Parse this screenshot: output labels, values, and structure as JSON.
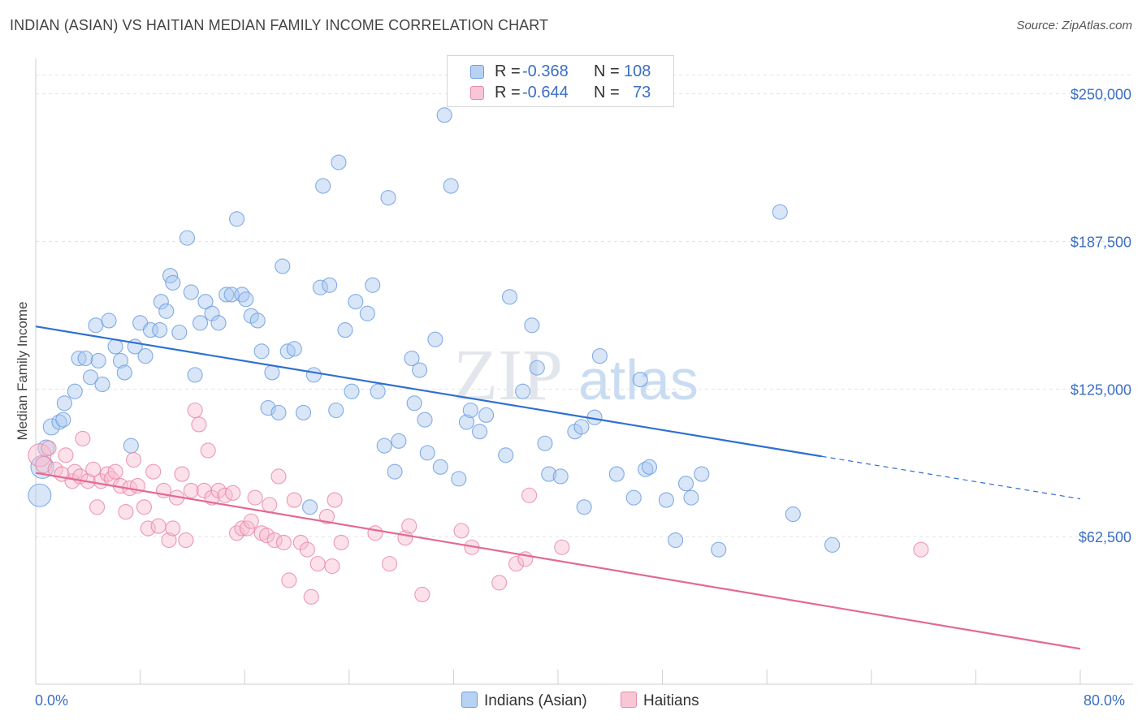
{
  "title": "INDIAN (ASIAN) VS HAITIAN MEDIAN FAMILY INCOME CORRELATION CHART",
  "source": "Source: ZipAtlas.com",
  "watermark": "ZIPatlas",
  "legend": {
    "rows": [
      {
        "r_label": "R =",
        "r_value": "-0.368",
        "n_label": "N =",
        "n_value": "108",
        "color": "#a8c8f0",
        "border": "#6f9fe0"
      },
      {
        "r_label": "R =",
        "r_value": "-0.644",
        "n_label": "N =",
        "n_value": "73",
        "color": "#f8bcd0",
        "border": "#e888a8"
      }
    ]
  },
  "chart_data": {
    "type": "scatter",
    "title": "INDIAN (ASIAN) VS HAITIAN MEDIAN FAMILY INCOME CORRELATION CHART",
    "xlabel": "",
    "ylabel": "Median Family Income",
    "xlim": [
      0,
      80
    ],
    "ylim": [
      0,
      265000
    ],
    "x_tick_labels": [
      "0.0%",
      "80.0%"
    ],
    "y_ticks": [
      62500,
      125000,
      187500,
      250000
    ],
    "y_tick_labels": [
      "$62,500",
      "$125,000",
      "$187,500",
      "$250,000"
    ],
    "grid": "horizontal dashed",
    "legend_placement": "bottom-center",
    "series": [
      {
        "name": "Indians (Asian)",
        "color": "#6f9fe0",
        "fill": "#a8c8f0",
        "trend": {
          "x": [
            0,
            60.2
          ],
          "y": [
            151500,
            96500
          ],
          "dash_to": [
            80,
            78500
          ]
        },
        "points": [
          [
            0.3,
            80000,
            14
          ],
          [
            0.5,
            92000,
            14
          ],
          [
            0.8,
            100000,
            10
          ],
          [
            1.2,
            109000,
            10
          ],
          [
            1.8,
            111000,
            9
          ],
          [
            2.1,
            112000,
            9
          ],
          [
            2.2,
            119000,
            9
          ],
          [
            3.0,
            124000,
            9
          ],
          [
            3.3,
            138000,
            9
          ],
          [
            3.8,
            138000,
            9
          ],
          [
            4.2,
            130000,
            9
          ],
          [
            4.6,
            152000,
            9
          ],
          [
            4.8,
            137000,
            9
          ],
          [
            5.1,
            127000,
            9
          ],
          [
            5.6,
            154000,
            9
          ],
          [
            6.1,
            143000,
            9
          ],
          [
            6.5,
            137000,
            9
          ],
          [
            6.8,
            132000,
            9
          ],
          [
            7.3,
            101000,
            9
          ],
          [
            7.6,
            143000,
            9
          ],
          [
            8.0,
            153000,
            9
          ],
          [
            8.4,
            139000,
            9
          ],
          [
            8.8,
            150000,
            9
          ],
          [
            9.5,
            150000,
            9
          ],
          [
            9.6,
            162000,
            9
          ],
          [
            10.0,
            158000,
            9
          ],
          [
            10.3,
            173000,
            9
          ],
          [
            10.5,
            170000,
            9
          ],
          [
            11.0,
            149000,
            9
          ],
          [
            11.6,
            189000,
            9
          ],
          [
            11.9,
            166000,
            9
          ],
          [
            12.2,
            131000,
            9
          ],
          [
            12.6,
            153000,
            9
          ],
          [
            13.0,
            162000,
            9
          ],
          [
            13.5,
            157000,
            9
          ],
          [
            14.0,
            153000,
            9
          ],
          [
            14.6,
            165000,
            9
          ],
          [
            15.0,
            165000,
            9
          ],
          [
            15.4,
            197000,
            9
          ],
          [
            15.8,
            165000,
            9
          ],
          [
            16.1,
            163000,
            9
          ],
          [
            16.5,
            156000,
            9
          ],
          [
            17.0,
            154000,
            9
          ],
          [
            17.3,
            141000,
            9
          ],
          [
            17.8,
            117000,
            9
          ],
          [
            18.1,
            132000,
            9
          ],
          [
            18.6,
            115000,
            9
          ],
          [
            18.9,
            177000,
            9
          ],
          [
            19.3,
            141000,
            9
          ],
          [
            19.8,
            142000,
            9
          ],
          [
            20.5,
            115000,
            9
          ],
          [
            21.0,
            75000,
            9
          ],
          [
            21.3,
            131000,
            9
          ],
          [
            21.8,
            168000,
            9
          ],
          [
            22.0,
            211000,
            9
          ],
          [
            22.5,
            169000,
            9
          ],
          [
            23.0,
            116000,
            9
          ],
          [
            23.2,
            221000,
            9
          ],
          [
            23.7,
            150000,
            9
          ],
          [
            24.2,
            124000,
            9
          ],
          [
            24.5,
            162000,
            9
          ],
          [
            25.4,
            157000,
            9
          ],
          [
            25.8,
            169000,
            9
          ],
          [
            26.2,
            124000,
            9
          ],
          [
            26.7,
            101000,
            9
          ],
          [
            27.0,
            206000,
            9
          ],
          [
            27.5,
            90000,
            9
          ],
          [
            27.8,
            103000,
            9
          ],
          [
            28.8,
            138000,
            9
          ],
          [
            29.0,
            119000,
            9
          ],
          [
            29.4,
            133000,
            9
          ],
          [
            29.8,
            112000,
            9
          ],
          [
            30.0,
            98000,
            9
          ],
          [
            30.6,
            146000,
            9
          ],
          [
            31.0,
            92000,
            9
          ],
          [
            31.3,
            241000,
            9
          ],
          [
            31.8,
            211000,
            9
          ],
          [
            32.4,
            87000,
            9
          ],
          [
            33.0,
            111000,
            9
          ],
          [
            33.3,
            116000,
            9
          ],
          [
            34.0,
            107000,
            9
          ],
          [
            34.5,
            114000,
            9
          ],
          [
            36.0,
            97000,
            9
          ],
          [
            36.3,
            164000,
            9
          ],
          [
            37.3,
            124000,
            9
          ],
          [
            38.0,
            152000,
            9
          ],
          [
            38.4,
            134000,
            9
          ],
          [
            39.0,
            102000,
            9
          ],
          [
            39.3,
            89000,
            9
          ],
          [
            40.2,
            88000,
            9
          ],
          [
            41.3,
            107000,
            9
          ],
          [
            41.8,
            109000,
            9
          ],
          [
            42.0,
            75000,
            9
          ],
          [
            42.8,
            113000,
            9
          ],
          [
            43.2,
            139000,
            9
          ],
          [
            44.5,
            89000,
            9
          ],
          [
            45.8,
            79000,
            9
          ],
          [
            46.3,
            129000,
            9
          ],
          [
            46.7,
            91000,
            9
          ],
          [
            47.0,
            92000,
            9
          ],
          [
            48.3,
            78000,
            9
          ],
          [
            49.0,
            61000,
            9
          ],
          [
            49.8,
            85000,
            9
          ],
          [
            50.2,
            79000,
            9
          ],
          [
            51.0,
            89000,
            9
          ],
          [
            52.3,
            57000,
            9
          ],
          [
            57.0,
            200000,
            9
          ],
          [
            58.0,
            72000,
            9
          ],
          [
            61.0,
            59000,
            9
          ]
        ]
      },
      {
        "name": "Haitians",
        "color": "#e888a8",
        "fill": "#f8bcd0",
        "trend": {
          "x": [
            0,
            80
          ],
          "y": [
            89500,
            15000
          ]
        },
        "points": [
          [
            0.3,
            97000,
            14
          ],
          [
            0.6,
            93000,
            10
          ],
          [
            1.0,
            100000,
            9
          ],
          [
            1.5,
            91000,
            9
          ],
          [
            2.0,
            89000,
            9
          ],
          [
            2.3,
            97000,
            9
          ],
          [
            2.8,
            86000,
            9
          ],
          [
            3.0,
            90000,
            9
          ],
          [
            3.4,
            88000,
            9
          ],
          [
            3.6,
            104000,
            9
          ],
          [
            4.0,
            86000,
            9
          ],
          [
            4.4,
            91000,
            9
          ],
          [
            4.7,
            75000,
            9
          ],
          [
            5.0,
            86000,
            9
          ],
          [
            5.5,
            89000,
            9
          ],
          [
            5.8,
            87000,
            9
          ],
          [
            6.1,
            90000,
            9
          ],
          [
            6.5,
            84000,
            9
          ],
          [
            6.9,
            73000,
            9
          ],
          [
            7.2,
            83000,
            9
          ],
          [
            7.5,
            95000,
            9
          ],
          [
            7.8,
            84000,
            9
          ],
          [
            8.3,
            75000,
            9
          ],
          [
            8.6,
            66000,
            9
          ],
          [
            9.0,
            90000,
            9
          ],
          [
            9.4,
            67000,
            9
          ],
          [
            9.8,
            82000,
            9
          ],
          [
            10.2,
            61000,
            9
          ],
          [
            10.5,
            66000,
            9
          ],
          [
            10.8,
            79000,
            9
          ],
          [
            11.2,
            89000,
            9
          ],
          [
            11.5,
            61000,
            9
          ],
          [
            11.9,
            82000,
            9
          ],
          [
            12.2,
            116000,
            9
          ],
          [
            12.5,
            110000,
            9
          ],
          [
            12.9,
            82000,
            9
          ],
          [
            13.2,
            99000,
            9
          ],
          [
            13.5,
            79000,
            9
          ],
          [
            14.0,
            82000,
            9
          ],
          [
            14.5,
            80000,
            9
          ],
          [
            15.1,
            81000,
            9
          ],
          [
            15.4,
            64000,
            9
          ],
          [
            15.8,
            66000,
            9
          ],
          [
            16.2,
            66000,
            9
          ],
          [
            16.5,
            69000,
            9
          ],
          [
            16.8,
            79000,
            9
          ],
          [
            17.3,
            64000,
            9
          ],
          [
            17.7,
            63000,
            9
          ],
          [
            17.9,
            76000,
            9
          ],
          [
            18.3,
            61000,
            9
          ],
          [
            18.6,
            88000,
            9
          ],
          [
            19.0,
            60000,
            9
          ],
          [
            19.4,
            44000,
            9
          ],
          [
            19.8,
            78000,
            9
          ],
          [
            20.3,
            60000,
            9
          ],
          [
            20.8,
            57000,
            9
          ],
          [
            21.1,
            37000,
            9
          ],
          [
            21.6,
            51000,
            9
          ],
          [
            22.3,
            71000,
            9
          ],
          [
            22.7,
            50000,
            9
          ],
          [
            22.9,
            78000,
            9
          ],
          [
            23.4,
            60000,
            9
          ],
          [
            26.0,
            64000,
            9
          ],
          [
            27.1,
            51000,
            9
          ],
          [
            28.3,
            62000,
            9
          ],
          [
            28.6,
            67000,
            9
          ],
          [
            29.6,
            38000,
            9
          ],
          [
            32.6,
            65000,
            9
          ],
          [
            33.4,
            58000,
            9
          ],
          [
            35.5,
            43000,
            9
          ],
          [
            36.8,
            51000,
            9
          ],
          [
            37.5,
            53000,
            9
          ],
          [
            37.8,
            80000,
            9
          ],
          [
            40.3,
            58000,
            9
          ],
          [
            67.8,
            57000,
            9
          ]
        ]
      }
    ]
  }
}
